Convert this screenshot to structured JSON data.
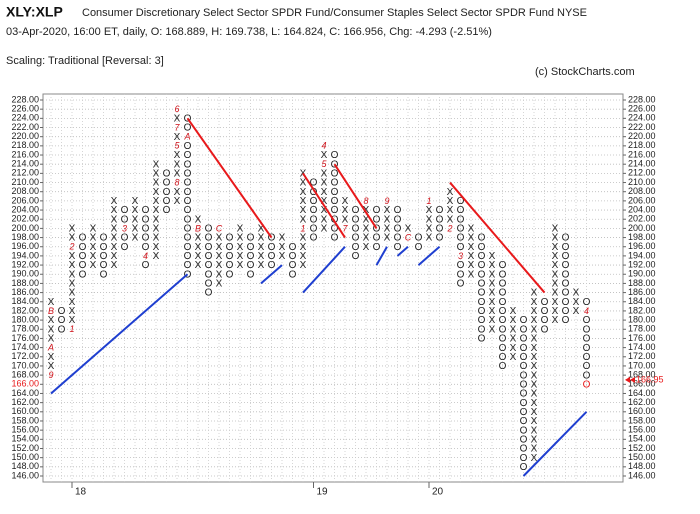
{
  "chart_data": {
    "type": "point-and-figure",
    "title": "XLY:XLP",
    "subtitle": "Consumer Discretionary Select Sector SPDR Fund/Consumer Staples Select Sector SPDR Fund  NYSE",
    "info": "03-Apr-2020, 16:00 ET, daily, O: 168.889, H: 169.738, L: 164.824, C: 166.956, Chg: -4.293 (-2.51%)",
    "scaling": "Scaling: Traditional [Reversal: 3]",
    "copyright": "(c) StockCharts.com",
    "ylim": [
      146,
      228
    ],
    "yticks": [
      {
        "value": 146,
        "label": "146.00"
      },
      {
        "value": 148,
        "label": "148.00"
      },
      {
        "value": 150,
        "label": "150.00"
      },
      {
        "value": 152,
        "label": "152.00"
      },
      {
        "value": 154,
        "label": "154.00"
      },
      {
        "value": 156,
        "label": "156.00"
      },
      {
        "value": 158,
        "label": "158.00"
      },
      {
        "value": 160,
        "label": "160.00"
      },
      {
        "value": 162,
        "label": "162.00"
      },
      {
        "value": 164,
        "label": "164.00"
      },
      {
        "value": 166,
        "label": "166.00"
      },
      {
        "value": 168,
        "label": "168.00"
      },
      {
        "value": 170,
        "label": "170.00"
      },
      {
        "value": 172,
        "label": "172.00"
      },
      {
        "value": 174,
        "label": "174.00"
      },
      {
        "value": 176,
        "label": "176.00"
      },
      {
        "value": 178,
        "label": "178.00"
      },
      {
        "value": 180,
        "label": "180.00"
      },
      {
        "value": 182,
        "label": "182.00"
      },
      {
        "value": 184,
        "label": "184.00"
      },
      {
        "value": 186,
        "label": "186.00"
      },
      {
        "value": 188,
        "label": "188.00"
      },
      {
        "value": 190,
        "label": "190.00"
      },
      {
        "value": 192,
        "label": "192.00"
      },
      {
        "value": 194,
        "label": "194.00"
      },
      {
        "value": 196,
        "label": "196.00"
      },
      {
        "value": 198,
        "label": "198.00"
      },
      {
        "value": 200,
        "label": "200.00"
      },
      {
        "value": 202,
        "label": "202.00"
      },
      {
        "value": 204,
        "label": "204.00"
      },
      {
        "value": 206,
        "label": "206.00"
      },
      {
        "value": 208,
        "label": "208.00"
      },
      {
        "value": 210,
        "label": "210.00"
      },
      {
        "value": 212,
        "label": "212.00"
      },
      {
        "value": 214,
        "label": "214.00"
      },
      {
        "value": 216,
        "label": "216.00"
      },
      {
        "value": 218,
        "label": "218.00"
      },
      {
        "value": 220,
        "label": "220.00"
      },
      {
        "value": 222,
        "label": "222.00"
      },
      {
        "value": 224,
        "label": "224.00"
      },
      {
        "value": 226,
        "label": "226.00"
      },
      {
        "value": 228,
        "label": "228.00"
      }
    ],
    "box_size": 2,
    "grid": true,
    "columns": [
      {
        "box": "X",
        "low": 168,
        "high": 184
      },
      {
        "box": "O",
        "low": 178,
        "high": 182
      },
      {
        "box": "X",
        "low": 178,
        "high": 200
      },
      {
        "box": "O",
        "low": 190,
        "high": 198
      },
      {
        "box": "X",
        "low": 192,
        "high": 200
      },
      {
        "box": "O",
        "low": 190,
        "high": 198
      },
      {
        "box": "X",
        "low": 192,
        "high": 206
      },
      {
        "box": "O",
        "low": 196,
        "high": 204
      },
      {
        "box": "X",
        "low": 198,
        "high": 206
      },
      {
        "box": "O",
        "low": 192,
        "high": 204
      },
      {
        "box": "X",
        "low": 194,
        "high": 214
      },
      {
        "box": "O",
        "low": 204,
        "high": 212
      },
      {
        "box": "X",
        "low": 206,
        "high": 226
      },
      {
        "box": "O",
        "low": 190,
        "high": 224
      },
      {
        "box": "X",
        "low": 192,
        "high": 202
      },
      {
        "box": "O",
        "low": 186,
        "high": 200
      },
      {
        "box": "X",
        "low": 188,
        "high": 200
      },
      {
        "box": "O",
        "low": 190,
        "high": 198
      },
      {
        "box": "X",
        "low": 192,
        "high": 200
      },
      {
        "box": "O",
        "low": 190,
        "high": 198
      },
      {
        "box": "X",
        "low": 192,
        "high": 200
      },
      {
        "box": "O",
        "low": 192,
        "high": 198
      },
      {
        "box": "X",
        "low": 194,
        "high": 198
      },
      {
        "box": "O",
        "low": 190,
        "high": 196
      },
      {
        "box": "X",
        "low": 192,
        "high": 212
      },
      {
        "box": "O",
        "low": 198,
        "high": 210
      },
      {
        "box": "X",
        "low": 200,
        "high": 218
      },
      {
        "box": "O",
        "low": 198,
        "high": 216
      },
      {
        "box": "X",
        "low": 200,
        "high": 206
      },
      {
        "box": "O",
        "low": 194,
        "high": 204
      },
      {
        "box": "X",
        "low": 196,
        "high": 206
      },
      {
        "box": "O",
        "low": 196,
        "high": 204
      },
      {
        "box": "X",
        "low": 198,
        "high": 206
      },
      {
        "box": "O",
        "low": 196,
        "high": 204
      },
      {
        "box": "X",
        "low": 198,
        "high": 200
      },
      {
        "box": "O",
        "low": 196,
        "high": 198
      },
      {
        "box": "X",
        "low": 198,
        "high": 206
      },
      {
        "box": "O",
        "low": 198,
        "high": 204
      },
      {
        "box": "X",
        "low": 200,
        "high": 208
      },
      {
        "box": "O",
        "low": 188,
        "high": 206
      },
      {
        "box": "X",
        "low": 190,
        "high": 200
      },
      {
        "box": "O",
        "low": 176,
        "high": 198
      },
      {
        "box": "X",
        "low": 178,
        "high": 194
      },
      {
        "box": "O",
        "low": 170,
        "high": 192
      },
      {
        "box": "X",
        "low": 172,
        "high": 182
      },
      {
        "box": "O",
        "low": 148,
        "high": 180
      },
      {
        "box": "X",
        "low": 150,
        "high": 186
      },
      {
        "box": "O",
        "low": 178,
        "high": 184
      },
      {
        "box": "X",
        "low": 180,
        "high": 200
      },
      {
        "box": "O",
        "low": 180,
        "high": 198
      },
      {
        "box": "X",
        "low": 182,
        "high": 186
      },
      {
        "box": "O",
        "low": 166,
        "high": 184
      }
    ],
    "month_markers": [
      {
        "col": 0,
        "value": 168,
        "label": "9"
      },
      {
        "col": 0,
        "value": 174,
        "label": "A"
      },
      {
        "col": 0,
        "value": 182,
        "label": "B"
      },
      {
        "col": 2,
        "value": 178,
        "label": "1"
      },
      {
        "col": 2,
        "value": 196,
        "label": "2"
      },
      {
        "col": 7,
        "value": 200,
        "label": "3"
      },
      {
        "col": 9,
        "value": 194,
        "label": "4"
      },
      {
        "col": 12,
        "value": 218,
        "label": "5"
      },
      {
        "col": 12,
        "value": 226,
        "label": "6"
      },
      {
        "col": 12,
        "value": 222,
        "label": "7"
      },
      {
        "col": 12,
        "value": 210,
        "label": "8"
      },
      {
        "col": 13,
        "value": 220,
        "label": "A"
      },
      {
        "col": 14,
        "value": 200,
        "label": "B"
      },
      {
        "col": 16,
        "value": 200,
        "label": "C"
      },
      {
        "col": 24,
        "value": 200,
        "label": "1"
      },
      {
        "col": 26,
        "value": 218,
        "label": "4"
      },
      {
        "col": 26,
        "value": 214,
        "label": "5"
      },
      {
        "col": 28,
        "value": 200,
        "label": "7"
      },
      {
        "col": 30,
        "value": 206,
        "label": "8"
      },
      {
        "col": 32,
        "value": 206,
        "label": "9"
      },
      {
        "col": 34,
        "value": 198,
        "label": "C"
      },
      {
        "col": 36,
        "value": 206,
        "label": "1"
      },
      {
        "col": 38,
        "value": 200,
        "label": "2"
      },
      {
        "col": 39,
        "value": 194,
        "label": "3"
      },
      {
        "col": 51,
        "value": 182,
        "label": "4"
      }
    ],
    "trendlines": [
      {
        "color": "#e8191b",
        "from": [
          13,
          224
        ],
        "to": [
          21,
          198
        ]
      },
      {
        "color": "#e8191b",
        "from": [
          24,
          212
        ],
        "to": [
          28,
          198
        ]
      },
      {
        "color": "#e8191b",
        "from": [
          27,
          214
        ],
        "to": [
          31,
          200
        ]
      },
      {
        "color": "#e8191b",
        "from": [
          38,
          210
        ],
        "to": [
          47,
          186
        ]
      },
      {
        "color": "#1f3fd0",
        "from": [
          0,
          164
        ],
        "to": [
          13,
          190
        ]
      },
      {
        "color": "#1f3fd0",
        "from": [
          20,
          188
        ],
        "to": [
          22,
          192
        ]
      },
      {
        "color": "#1f3fd0",
        "from": [
          24,
          186
        ],
        "to": [
          28,
          196
        ]
      },
      {
        "color": "#1f3fd0",
        "from": [
          31,
          192
        ],
        "to": [
          32,
          196
        ]
      },
      {
        "color": "#1f3fd0",
        "from": [
          33,
          194
        ],
        "to": [
          34,
          196
        ]
      },
      {
        "color": "#1f3fd0",
        "from": [
          35,
          192
        ],
        "to": [
          37,
          196
        ]
      },
      {
        "color": "#1f3fd0",
        "from": [
          45,
          146
        ],
        "to": [
          51,
          160
        ]
      }
    ],
    "x_labels": [
      {
        "col": 2,
        "label": "18"
      },
      {
        "col": 25,
        "label": "19"
      },
      {
        "col": 36,
        "label": "20"
      }
    ],
    "last_price": {
      "value": 166.95,
      "label": "166.95"
    },
    "highlight_color": "#e8191b"
  }
}
